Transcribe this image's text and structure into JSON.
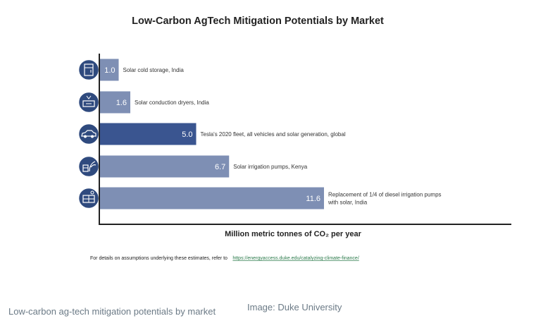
{
  "chart_data": {
    "type": "bar",
    "orientation": "horizontal",
    "title": "Low-Carbon AgTech Mitigation Potentials by Market",
    "xlabel": "Million metric tonnes of CO₂ per year",
    "ylabel": "",
    "xlim": [
      0,
      13
    ],
    "grid": false,
    "categories": [
      "Solar cold storage, India",
      "Solar conduction dryers, India",
      "Tesla's 2020 fleet, all vehicles and solar generation, global",
      "Solar irrigation pumps, Kenya",
      "Replacement of 1/4 of diesel irrigation pumps with solar, India"
    ],
    "values": [
      1.0,
      1.6,
      5.0,
      6.7,
      11.6
    ],
    "value_labels": [
      "1.0",
      "1.6",
      "5.0",
      "6.7",
      "11.6"
    ],
    "label_lines": [
      [
        "Solar cold storage, India"
      ],
      [
        "Solar conduction dryers, India"
      ],
      [
        "Tesla's 2020 fleet, all vehicles and solar generation, global"
      ],
      [
        "Solar irrigation pumps, Kenya"
      ],
      [
        "Replacement of 1/4 of diesel irrigation pumps",
        "with solar, India"
      ]
    ],
    "icons": [
      "cold-storage-icon",
      "dryer-icon",
      "car-icon",
      "irrigation-pump-icon",
      "solar-panel-icon"
    ],
    "colors": {
      "bar": "#7e8fb4",
      "highlight_bar": "#3a5590",
      "icon_circle": "#2f4a7e",
      "axis": "#222222"
    },
    "highlight_index": 2
  },
  "footnote": {
    "text": "For details on assumptions underlying these estimates, refer to",
    "link": "https://energyaccess.duke.edu/catalyzing-climate-finance/"
  },
  "caption": "Low-carbon ag-tech mitigation potentials by market",
  "credit": "Image: Duke University"
}
